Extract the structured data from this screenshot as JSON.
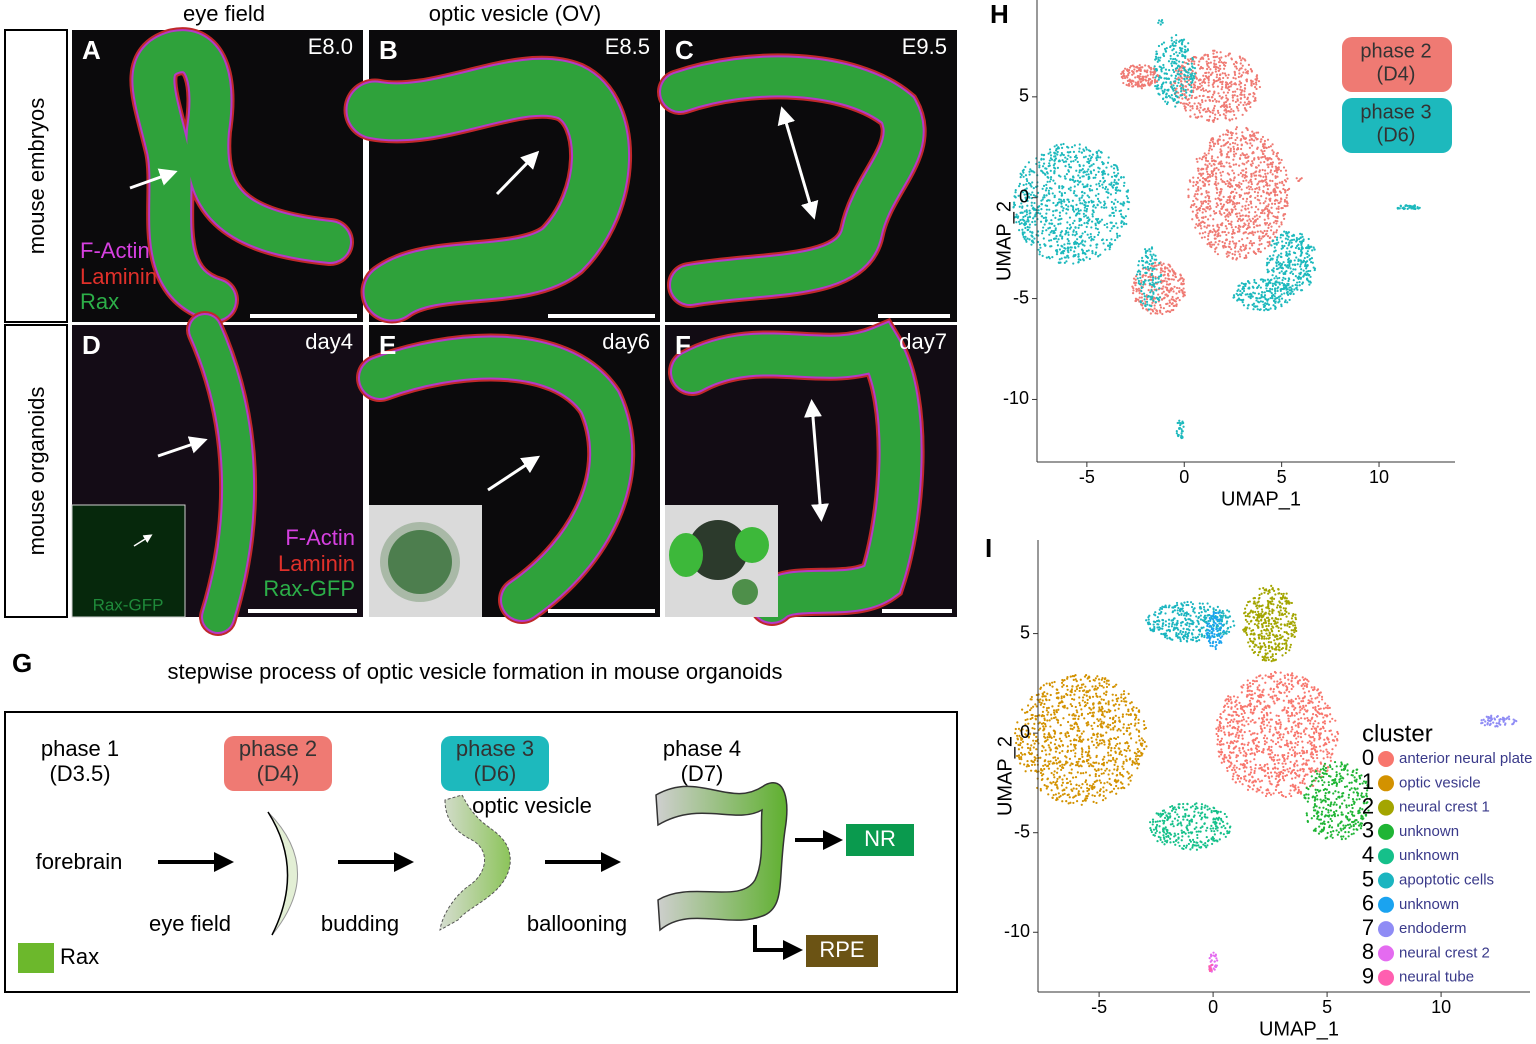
{
  "panels": {
    "column_headers": [
      "eye field",
      "optic vesicle (OV)"
    ],
    "row_labels": [
      "mouse embryos",
      "mouse organoids"
    ],
    "images": [
      {
        "letter": "A",
        "stage": "E8.0"
      },
      {
        "letter": "B",
        "stage": "E8.5"
      },
      {
        "letter": "C",
        "stage": "E9.5"
      },
      {
        "letter": "D",
        "stage": "day4"
      },
      {
        "letter": "E",
        "stage": "day6"
      },
      {
        "letter": "F",
        "stage": "day7"
      }
    ],
    "legend_embryo": [
      "F-Actin",
      "Laminin",
      "Rax"
    ],
    "legend_organoid": [
      "F-Actin",
      "Laminin",
      "Rax-GFP"
    ],
    "inset_label": "Rax-GFP"
  },
  "schematic": {
    "letter": "G",
    "title": "stepwise process of optic vesicle formation in mouse organoids",
    "phases": [
      {
        "title": "phase 1",
        "day": "(D3.5)"
      },
      {
        "title": "phase 2",
        "day": "(D4)",
        "color": "#ef7a73"
      },
      {
        "title": "phase 3",
        "day": "(D6)",
        "color": "#1db9bd"
      },
      {
        "title": "phase 4",
        "day": "(D7)"
      }
    ],
    "optic_vesicle": "optic vesicle",
    "start": "forebrain",
    "steps": [
      "eye field",
      "budding",
      "ballooning"
    ],
    "outputs": [
      "NR",
      "RPE"
    ],
    "legend": {
      "name": "Rax",
      "color": "#6cb82c"
    }
  },
  "umap_phase": {
    "letter": "H",
    "xlabel": "UMAP_1",
    "ylabel": "UMAP_2",
    "xlim": [
      -7.56,
      13.9
    ],
    "ylim": [
      -13.1,
      9.8
    ],
    "xticks": [
      -5,
      0,
      5,
      10
    ],
    "yticks": [
      5,
      0,
      -5,
      -10
    ],
    "groups": [
      {
        "title": "phase 2",
        "day": "(D4)",
        "color": "#ef7a73"
      },
      {
        "title": "phase 3",
        "day": "(D6)",
        "color": "#1db9bd"
      }
    ]
  },
  "umap_cluster": {
    "letter": "I",
    "xlabel": "UMAP_1",
    "ylabel": "UMAP_2",
    "xlim": [
      -7.68,
      13.9
    ],
    "ylim": [
      -13.0,
      9.7
    ],
    "xticks": [
      -5,
      0,
      5,
      10
    ],
    "yticks": [
      5,
      0,
      -5,
      -10
    ],
    "legend_title": "cluster",
    "clusters": [
      {
        "id": 0,
        "name": "anterior neural plate",
        "color": "#f8766d"
      },
      {
        "id": 1,
        "name": "optic vesicle",
        "color": "#d39200"
      },
      {
        "id": 2,
        "name": "neural crest 1",
        "color": "#a3a500"
      },
      {
        "id": 3,
        "name": "unknown",
        "color": "#1fb535"
      },
      {
        "id": 4,
        "name": "unknown",
        "color": "#15c08a"
      },
      {
        "id": 5,
        "name": "apoptotic cells",
        "color": "#1bb5c0"
      },
      {
        "id": 6,
        "name": "unknown",
        "color": "#1aa3f0"
      },
      {
        "id": 7,
        "name": "endoderm",
        "color": "#8f8cf5"
      },
      {
        "id": 8,
        "name": "neural crest 2",
        "color": "#e46bf0"
      },
      {
        "id": 9,
        "name": "neural tube",
        "color": "#ff5fb0"
      }
    ]
  }
}
